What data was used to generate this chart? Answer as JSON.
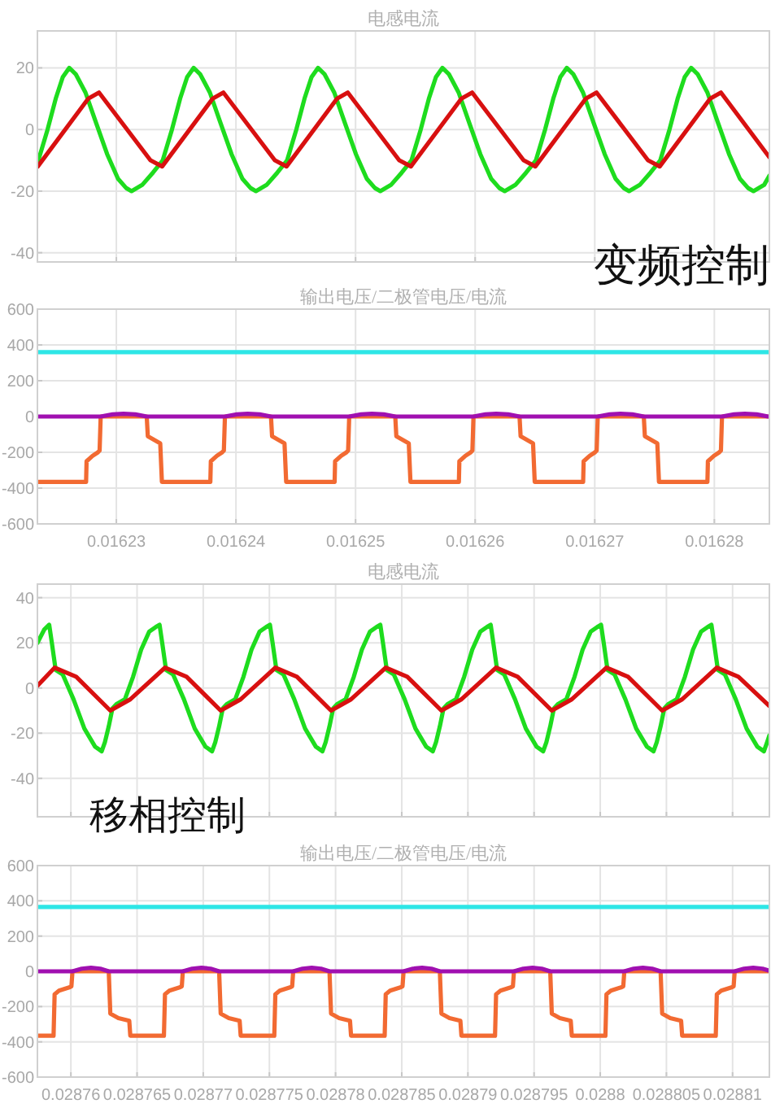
{
  "chart_data": [
    {
      "type": "line",
      "title": "电感电流",
      "annotations": [
        "变频控制"
      ],
      "xlim": [
        0.0162234,
        0.0162846
      ],
      "xticks": [
        0.01623,
        0.01624,
        0.01625,
        0.01626,
        0.01627,
        0.01628
      ],
      "ylim": [
        -43,
        32
      ],
      "yticks": [
        -40,
        -20,
        0,
        20
      ],
      "grid": true,
      "tick_labels": "y",
      "series": [
        {
          "color": "#1edc1e",
          "x": [
            0.01622348,
            0.01622425,
            0.01622493,
            0.01622552,
            0.01622606,
            0.0162266,
            0.01622742,
            0.01622832,
            0.01622923,
            0.01623014,
            0.01623082,
            0.01623127,
            0.01623216,
            0.01623306,
            0.01623388,
            0.01623465,
            0.01623533,
            0.01623592,
            0.01623646,
            0.016237,
            0.01623782,
            0.01623872,
            0.01623963,
            0.01624054,
            0.01624122,
            0.01624167,
            0.01624256,
            0.01624346,
            0.01624428,
            0.01624505,
            0.01624573,
            0.01624632,
            0.01624686,
            0.0162474,
            0.01624822,
            0.01624912,
            0.01625003,
            0.01625094,
            0.01625162,
            0.01625207,
            0.01625296,
            0.01625386,
            0.01625468,
            0.01625545,
            0.01625613,
            0.01625672,
            0.01625726,
            0.0162578,
            0.01625862,
            0.01625952,
            0.01626043,
            0.01626134,
            0.01626202,
            0.01626247,
            0.01626336,
            0.01626426,
            0.01626508,
            0.01626585,
            0.01626653,
            0.01626712,
            0.01626766,
            0.0162682,
            0.01626902,
            0.01626992,
            0.01627083,
            0.01627174,
            0.01627242,
            0.01627287,
            0.01627376,
            0.01627466,
            0.01627548,
            0.01627625,
            0.01627693,
            0.01627752,
            0.01627806,
            0.0162786,
            0.01627942,
            0.01628032,
            0.01628123,
            0.01628214,
            0.01628282,
            0.01628327,
            0.01628416,
            0.0162846
          ],
          "values": [
            -10,
            0,
            10,
            17,
            20,
            18,
            12,
            2,
            -8,
            -16,
            -19,
            -20,
            -18,
            -14,
            -10,
            0,
            10,
            17,
            20,
            18,
            12,
            2,
            -8,
            -16,
            -19,
            -20,
            -18,
            -14,
            -10,
            0,
            10,
            17,
            20,
            18,
            12,
            2,
            -8,
            -16,
            -19,
            -20,
            -18,
            -14,
            -10,
            0,
            10,
            17,
            20,
            18,
            12,
            2,
            -8,
            -16,
            -19,
            -20,
            -18,
            -14,
            -10,
            0,
            10,
            17,
            20,
            18,
            12,
            2,
            -8,
            -16,
            -19,
            -20,
            -18,
            -14,
            -10,
            0,
            10,
            17,
            20,
            18,
            12,
            2,
            -8,
            -16,
            -19,
            -20,
            -18,
            -15
          ]
        },
        {
          "color": "#d81010",
          "x": [
            0.01622343,
            0.01622765,
            0.01622855,
            0.01623285,
            0.01623383,
            0.01623805,
            0.01623895,
            0.01624325,
            0.01624423,
            0.01624845,
            0.01624935,
            0.01625365,
            0.01625463,
            0.01625885,
            0.01625975,
            0.01626405,
            0.01626503,
            0.01626925,
            0.01627015,
            0.01627445,
            0.01627543,
            0.01627965,
            0.01628055,
            0.0162846
          ],
          "values": [
            -12,
            10,
            12,
            -10,
            -12,
            10,
            12,
            -10,
            -12,
            10,
            12,
            -10,
            -12,
            10,
            12,
            -10,
            -12,
            10,
            12,
            -10,
            -12,
            10,
            12,
            -9
          ]
        }
      ]
    },
    {
      "type": "line",
      "title": "输出电压/二极管电压/电流",
      "xlim": [
        0.0162234,
        0.0162846
      ],
      "xticks": [
        0.01623,
        0.01624,
        0.01625,
        0.01626,
        0.01627,
        0.01628
      ],
      "ylim": [
        -600,
        600
      ],
      "yticks": [
        -600,
        -400,
        -200,
        0,
        200,
        400,
        600
      ],
      "grid": true,
      "series": [
        {
          "color": "#2ee6e6",
          "x": [
            0.0162234,
            0.0162846
          ],
          "values": [
            360,
            360
          ]
        },
        {
          "color": "#f26a32",
          "x": [
            0.0162234,
            0.01622747,
            0.01622751,
            0.01622801,
            0.01622846,
            0.0162286,
            0.01622869,
            0.01623254,
            0.01623263,
            0.01623367,
            0.01623381,
            0.01623786,
            0.0162379,
            0.0162384,
            0.01623885,
            0.01623899,
            0.01623908,
            0.01624293,
            0.01624302,
            0.01624406,
            0.0162442,
            0.01624825,
            0.01624829,
            0.01624879,
            0.01624924,
            0.01624938,
            0.01624947,
            0.01625332,
            0.01625341,
            0.01625445,
            0.01625459,
            0.01625864,
            0.01625868,
            0.01625918,
            0.01625963,
            0.01625977,
            0.01625986,
            0.01626371,
            0.0162638,
            0.01626484,
            0.01626498,
            0.01626903,
            0.01626907,
            0.01626957,
            0.01627002,
            0.01627016,
            0.01627025,
            0.0162741,
            0.01627419,
            0.01627523,
            0.01627537,
            0.01627942,
            0.01627946,
            0.01627996,
            0.01628041,
            0.01628055,
            0.01628064,
            0.0162846
          ],
          "values": [
            -365,
            -365,
            -250,
            -220,
            -200,
            -190,
            0,
            0,
            -110,
            -150,
            -365,
            -365,
            -250,
            -220,
            -200,
            -190,
            0,
            0,
            -110,
            -150,
            -365,
            -365,
            -250,
            -220,
            -200,
            -190,
            0,
            0,
            -110,
            -150,
            -365,
            -365,
            -250,
            -220,
            -200,
            -190,
            0,
            0,
            -110,
            -150,
            -365,
            -365,
            -250,
            -220,
            -200,
            -190,
            0,
            0,
            -110,
            -150,
            -365,
            -365,
            -250,
            -220,
            -200,
            -190,
            0,
            0
          ]
        },
        {
          "color": "#a010b0",
          "x": [
            0.0162234,
            0.01622869,
            0.01622969,
            0.01623059,
            0.01623159,
            0.01623254,
            0.01623908,
            0.01624008,
            0.01624098,
            0.01624198,
            0.01624293,
            0.01624947,
            0.01625047,
            0.01625137,
            0.01625237,
            0.01625332,
            0.01625986,
            0.01626086,
            0.01626176,
            0.01626276,
            0.01626371,
            0.01627025,
            0.01627125,
            0.01627215,
            0.01627315,
            0.0162741,
            0.01628064,
            0.01628164,
            0.01628254,
            0.01628354,
            0.01628449,
            0.0162846
          ],
          "values": [
            0,
            0,
            12,
            15,
            12,
            0,
            0,
            12,
            15,
            12,
            0,
            0,
            12,
            15,
            12,
            0,
            0,
            12,
            15,
            12,
            0,
            0,
            12,
            15,
            12,
            0,
            0,
            12,
            15,
            12,
            0,
            0
          ]
        }
      ]
    },
    {
      "type": "line",
      "title": "电感电流",
      "annotations": [
        "移相控制"
      ],
      "xlim": [
        0.02875747,
        0.02881278
      ],
      "xticks": [
        0.02876,
        0.028765,
        0.02877,
        0.028775,
        0.02878,
        0.028785,
        0.02879,
        0.028795,
        0.0288,
        0.028805,
        0.02881
      ],
      "ylim": [
        -57,
        46
      ],
      "yticks": [
        -40,
        -20,
        0,
        20,
        40
      ],
      "grid": true,
      "tick_labels": "y",
      "series": [
        {
          "color": "#1edc1e",
          "x": [
            0.02875747,
            0.028758,
            0.02875836,
            0.02875856,
            0.02875885,
            0.02875938,
            0.0287602,
            0.02876102,
            0.02876183,
            0.02876233,
            0.02876257,
            0.02876286,
            0.02876314,
            0.02876347,
            0.02876408,
            0.0287647,
            0.02876531,
            0.02876592,
            0.02876641,
            0.0287667,
            0.0287669,
            0.02876719,
            0.02876772,
            0.02876854,
            0.02876936,
            0.02877017,
            0.02877067,
            0.02877091,
            0.0287712,
            0.02877148,
            0.02877181,
            0.02877242,
            0.02877304,
            0.02877365,
            0.02877426,
            0.02877475,
            0.02877504,
            0.02877524,
            0.02877553,
            0.02877606,
            0.02877688,
            0.0287777,
            0.02877851,
            0.02877901,
            0.02877925,
            0.02877954,
            0.02877982,
            0.02878015,
            0.02878076,
            0.02878138,
            0.02878199,
            0.0287826,
            0.02878309,
            0.02878338,
            0.02878358,
            0.02878387,
            0.0287844,
            0.02878522,
            0.02878604,
            0.02878685,
            0.02878735,
            0.02878759,
            0.02878788,
            0.02878816,
            0.02878849,
            0.0287891,
            0.02878972,
            0.02879033,
            0.02879094,
            0.02879143,
            0.02879172,
            0.02879192,
            0.02879221,
            0.02879274,
            0.02879356,
            0.02879438,
            0.02879519,
            0.02879569,
            0.02879593,
            0.02879622,
            0.0287965,
            0.02879683,
            0.02879744,
            0.02879806,
            0.02879867,
            0.02879928,
            0.02879977,
            0.02880006,
            0.02880026,
            0.02880055,
            0.02880108,
            0.0288019,
            0.02880272,
            0.02880353,
            0.02880403,
            0.02880427,
            0.02880456,
            0.02880484,
            0.02880517,
            0.02880578,
            0.0288064,
            0.02880701,
            0.02880762,
            0.02880811,
            0.0288084,
            0.0288086,
            0.02880889,
            0.02880942,
            0.02881024,
            0.02881106,
            0.02881187,
            0.02881237,
            0.02881261,
            0.02881278
          ],
          "values": [
            20,
            26,
            28,
            20,
            8,
            6,
            -5,
            -18,
            -26,
            -28,
            -24,
            -17,
            -9,
            -7,
            -5,
            5,
            17,
            25,
            27,
            28,
            20,
            8,
            6,
            -5,
            -18,
            -26,
            -28,
            -24,
            -17,
            -9,
            -7,
            -5,
            5,
            17,
            25,
            27,
            28,
            20,
            8,
            6,
            -5,
            -18,
            -26,
            -28,
            -24,
            -17,
            -9,
            -7,
            -5,
            5,
            17,
            25,
            27,
            28,
            20,
            8,
            6,
            -5,
            -18,
            -26,
            -28,
            -24,
            -17,
            -9,
            -7,
            -5,
            5,
            17,
            25,
            27,
            28,
            20,
            8,
            6,
            -5,
            -18,
            -26,
            -28,
            -24,
            -17,
            -9,
            -7,
            -5,
            5,
            17,
            25,
            27,
            28,
            20,
            8,
            6,
            -5,
            -18,
            -26,
            -28,
            -24,
            -17,
            -9,
            -7,
            -5,
            5,
            17,
            25,
            27,
            28,
            20,
            8,
            6,
            -5,
            -18,
            -26,
            -28,
            -24,
            -21
          ]
        },
        {
          "color": "#d81010",
          "x": [
            0.02875747,
            0.02875877,
            0.0287604,
            0.02876298,
            0.02876449,
            0.02876711,
            0.02876874,
            0.02877132,
            0.02877283,
            0.02877545,
            0.02877708,
            0.02877966,
            0.02878117,
            0.02878379,
            0.02878542,
            0.028788,
            0.02878951,
            0.02879213,
            0.02879376,
            0.02879634,
            0.02879785,
            0.02880047,
            0.0288021,
            0.02880468,
            0.02880619,
            0.02880881,
            0.02881044,
            0.02881278
          ],
          "values": [
            1,
            9,
            5,
            -10,
            -5,
            9,
            5,
            -10,
            -5,
            9,
            5,
            -10,
            -5,
            9,
            5,
            -10,
            -5,
            9,
            5,
            -10,
            -5,
            9,
            5,
            -10,
            -5,
            9,
            5,
            -8
          ]
        }
      ]
    },
    {
      "type": "line",
      "title": "输出电压/二极管电压/电流",
      "xlim": [
        0.02875747,
        0.02881278
      ],
      "xticks": [
        0.02876,
        0.028765,
        0.02877,
        0.028775,
        0.02878,
        0.028785,
        0.02879,
        0.028795,
        0.0288,
        0.028805,
        0.02881
      ],
      "ylim": [
        -600,
        600
      ],
      "yticks": [
        -600,
        -400,
        -200,
        0,
        200,
        400,
        600
      ],
      "grid": true,
      "series": [
        {
          "color": "#2ee6e6",
          "x": [
            0.02875747,
            0.02881278
          ],
          "values": [
            365,
            365
          ]
        },
        {
          "color": "#f26a32",
          "x": [
            0.02875747,
            0.02875869,
            0.02875877,
            0.0287591,
            0.02875992,
            0.02876004,
            0.02876012,
            0.02876286,
            0.02876298,
            0.02876359,
            0.02876441,
            0.02876449,
            0.02876703,
            0.02876711,
            0.02876744,
            0.02876826,
            0.02876838,
            0.02876846,
            0.0287712,
            0.02877132,
            0.02877193,
            0.02877275,
            0.02877283,
            0.02877537,
            0.02877545,
            0.02877578,
            0.0287766,
            0.02877672,
            0.0287768,
            0.02877954,
            0.02877966,
            0.02878027,
            0.02878109,
            0.02878117,
            0.02878371,
            0.02878379,
            0.02878412,
            0.02878494,
            0.02878506,
            0.02878514,
            0.02878788,
            0.028788,
            0.02878861,
            0.02878943,
            0.02878951,
            0.02879205,
            0.02879213,
            0.02879246,
            0.02879328,
            0.0287934,
            0.02879348,
            0.02879622,
            0.02879634,
            0.02879695,
            0.02879777,
            0.02879785,
            0.02880039,
            0.02880047,
            0.0288008,
            0.02880162,
            0.02880174,
            0.02880182,
            0.02880456,
            0.02880468,
            0.02880529,
            0.02880611,
            0.02880619,
            0.02880873,
            0.02880881,
            0.02880914,
            0.02880996,
            0.02881008,
            0.02881016,
            0.02881278
          ],
          "values": [
            -365,
            -365,
            -130,
            -110,
            -90,
            -85,
            0,
            0,
            -240,
            -265,
            -280,
            -365,
            -365,
            -130,
            -110,
            -90,
            -85,
            0,
            0,
            -240,
            -265,
            -280,
            -365,
            -365,
            -130,
            -110,
            -90,
            -85,
            0,
            0,
            -240,
            -265,
            -280,
            -365,
            -365,
            -130,
            -110,
            -90,
            -85,
            0,
            0,
            -240,
            -265,
            -280,
            -365,
            -365,
            -130,
            -110,
            -90,
            -85,
            0,
            0,
            -240,
            -265,
            -280,
            -365,
            -365,
            -130,
            -110,
            -90,
            -85,
            0,
            0,
            -240,
            -265,
            -280,
            -365,
            -365,
            -130,
            -110,
            -90,
            -85,
            0,
            0
          ]
        },
        {
          "color": "#a010b0",
          "x": [
            0.02875747,
            0.02876012,
            0.02876082,
            0.02876152,
            0.02876222,
            0.02876286,
            0.02876846,
            0.02876916,
            0.02876986,
            0.02877056,
            0.0287712,
            0.0287768,
            0.0287775,
            0.0287782,
            0.0287789,
            0.02877954,
            0.02878514,
            0.02878584,
            0.02878654,
            0.02878724,
            0.02878788,
            0.02879348,
            0.02879418,
            0.02879488,
            0.02879558,
            0.02879622,
            0.02880182,
            0.02880252,
            0.02880322,
            0.02880392,
            0.02880456,
            0.02881016,
            0.02881086,
            0.02881156,
            0.02881226,
            0.02881278
          ],
          "values": [
            0,
            0,
            15,
            20,
            15,
            0,
            0,
            15,
            20,
            15,
            0,
            0,
            15,
            20,
            15,
            0,
            0,
            15,
            20,
            15,
            0,
            0,
            15,
            20,
            15,
            0,
            0,
            15,
            20,
            15,
            0,
            0,
            15,
            20,
            15,
            3
          ]
        }
      ]
    }
  ]
}
